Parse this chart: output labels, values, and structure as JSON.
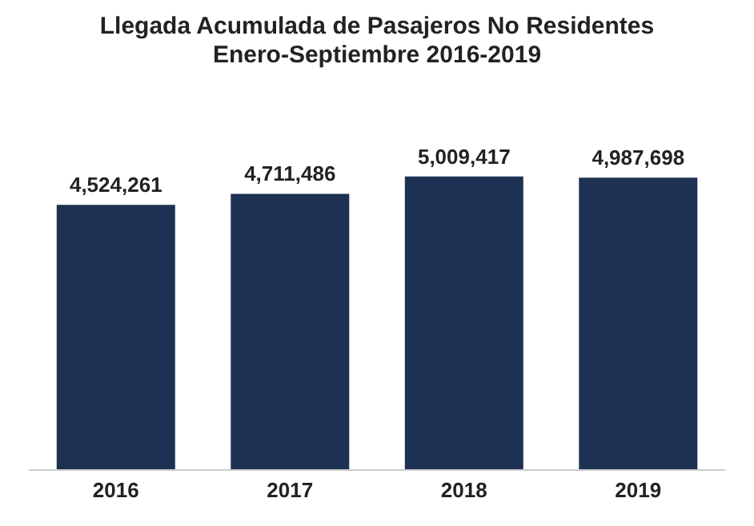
{
  "chart_data": {
    "type": "bar",
    "title": "Llegada Acumulada de Pasajeros No Residentes",
    "subtitle": "Enero-Septiembre 2016-2019",
    "categories": [
      "2016",
      "2017",
      "2018",
      "2019"
    ],
    "values": [
      4524261,
      4711486,
      5009417,
      4987698
    ],
    "value_labels": [
      "4,524,261",
      "4,711,486",
      "5,009,417",
      "4,987,698"
    ],
    "color": "#1d3152",
    "tick_labels": "x"
  }
}
